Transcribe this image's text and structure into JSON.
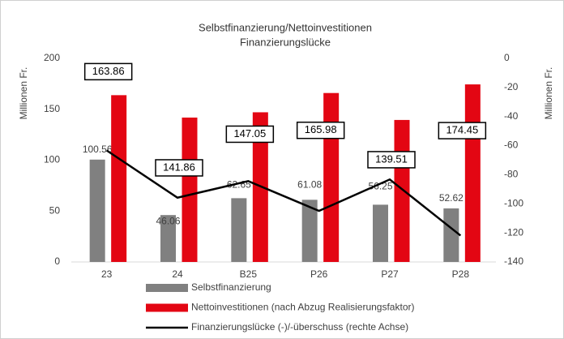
{
  "chart_data": {
    "type": "bar-line",
    "title": "Selbstfinanzierung/Nettoinvestitionen",
    "subtitle": "Finanzierungslücke",
    "y_label": "Millionen Fr.",
    "y2_label": "Millionen Fr.",
    "categories": [
      "23",
      "24",
      "B25",
      "P26",
      "P27",
      "P28"
    ],
    "ylim": [
      0,
      200
    ],
    "yticks": [
      0,
      50,
      100,
      150,
      200
    ],
    "y2lim": [
      -140,
      0
    ],
    "y2ticks": [
      -140,
      -120,
      -100,
      -80,
      -60,
      -40,
      -20,
      0
    ],
    "series": [
      {
        "name": "Selbstfinanzierung",
        "type": "bar",
        "color": "#808080",
        "values": [
          100.56,
          46.06,
          62.65,
          61.08,
          56.25,
          52.62
        ]
      },
      {
        "name": "Nettoinvestitionen (nach Abzug Realisierungsfaktor)",
        "type": "bar",
        "color": "#e30613",
        "values": [
          163.86,
          141.86,
          147.05,
          165.98,
          139.51,
          174.45
        ]
      },
      {
        "name": "Finanzierungslücke (-)/-überschuss (rechte Achse)",
        "type": "line",
        "axis": "y2",
        "color": "#000000",
        "values": [
          -63.3,
          -95.8,
          -84.4,
          -104.9,
          -83.26,
          -121.83
        ]
      }
    ]
  }
}
